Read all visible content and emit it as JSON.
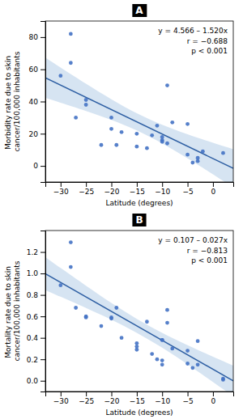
{
  "chart_data": [
    {
      "type": "scatter",
      "title": "A",
      "x_label": "Latitude (degrees)",
      "y_label": "Morbidity rate due to skin cancer/100,000 inhabitants",
      "annotations": [
        "y = 4.566 – 1.520x",
        "r = −0.688",
        "p < 0.001"
      ],
      "xlim": [
        -33,
        4
      ],
      "ylim": [
        -10,
        90
      ],
      "xticks": [
        {
          "value": -30,
          "label": "−30"
        },
        {
          "value": -25,
          "label": "−25"
        },
        {
          "value": -20,
          "label": "−20"
        },
        {
          "value": -15,
          "label": "−15"
        },
        {
          "value": -10,
          "label": "−10"
        },
        {
          "value": -5,
          "label": "−5"
        },
        0
      ],
      "yticks": [
        0,
        20,
        40,
        60,
        80
      ],
      "series": [
        {
          "type": "area",
          "color": "#c5d8ed",
          "x": [
            -33,
            -30,
            -25,
            -20,
            -15,
            -10,
            -5,
            0,
            4
          ],
          "lower": [
            42.216,
            39.247,
            34.125,
            28.567,
            22.044,
            13.988,
            4.674,
            -5.26,
            -13.414
          ],
          "upper": [
            67.236,
            61.085,
            51.007,
            41.365,
            32.688,
            25.544,
            19.658,
            14.392,
            10.386
          ]
        },
        {
          "type": "line",
          "color": "#2e5fa3",
          "x": [
            -33,
            4
          ],
          "values": [
            54.726,
            -1.514
          ]
        },
        {
          "type": "scatter",
          "color": "#4472C4",
          "x": [
            -30,
            -28,
            -28,
            -27,
            -25,
            -25,
            -22,
            -20,
            -20,
            -19,
            -18,
            -15,
            -15,
            -13,
            -12,
            -11,
            -10,
            -10,
            -10,
            -9,
            -9,
            -8,
            -5,
            -5,
            -4,
            -3,
            -3,
            -2,
            2
          ],
          "values": [
            56,
            64,
            82,
            30,
            41,
            38,
            13,
            23,
            30,
            13,
            21,
            12,
            20,
            11,
            19,
            25,
            18,
            16,
            15,
            14,
            50,
            27,
            7,
            26,
            2,
            5,
            3,
            9,
            8
          ]
        }
      ]
    },
    {
      "type": "scatter",
      "title": "B",
      "x_label": "Latitude (degrees)",
      "y_label": "Mortality rate due to skin cancer/100,000 inhabitants",
      "annotations": [
        "y = 0.107 – 0.027x",
        "r = −0.813",
        "p < 0.001"
      ],
      "xlim": [
        -33,
        4
      ],
      "ylim": [
        -0.1,
        1.4
      ],
      "xticks": [
        {
          "value": -30,
          "label": "−30"
        },
        {
          "value": -25,
          "label": "−25"
        },
        {
          "value": -20,
          "label": "−20"
        },
        {
          "value": -15,
          "label": "−15"
        },
        {
          "value": -10,
          "label": "−10"
        },
        {
          "value": -5,
          "label": "−5"
        },
        0
      ],
      "yticks": [
        {
          "value": 0,
          "label": "0.0"
        },
        0.2,
        0.4,
        0.6,
        0.8,
        {
          "value": 1,
          "label": "1.0"
        },
        1.2
      ],
      "series": [
        {
          "type": "area",
          "color": "#c5d8ed",
          "x": [
            -33,
            -30,
            -25,
            -20,
            -15,
            -10,
            -5,
            0,
            4
          ],
          "lower": [
            0.845,
            0.783,
            0.678,
            0.569,
            0.447,
            0.308,
            0.152,
            -0.011,
            -0.144
          ],
          "upper": [
            1.151,
            1.051,
            0.886,
            0.725,
            0.577,
            0.446,
            0.332,
            0.225,
            0.142
          ]
        },
        {
          "type": "line",
          "color": "#2e5fa3",
          "x": [
            -33,
            4
          ],
          "values": [
            0.998,
            -0.001
          ]
        },
        {
          "type": "scatter",
          "color": "#4472C4",
          "x": [
            -30,
            -28,
            -28,
            -27,
            -25,
            -25,
            -22,
            -20,
            -20,
            -19,
            -18,
            -15,
            -15,
            -15,
            -13,
            -12,
            -11,
            -10,
            -10,
            -10,
            -10,
            -9,
            -9,
            -8,
            -5,
            -5,
            -4,
            -3,
            -3,
            2,
            2
          ],
          "values": [
            0.89,
            1.29,
            1.06,
            0.68,
            0.6,
            0.59,
            0.51,
            0.58,
            0.59,
            0.68,
            0.4,
            0.29,
            0.35,
            0.32,
            0.55,
            0.25,
            0.2,
            0.19,
            0.15,
            0.38,
            0.38,
            0.66,
            0.54,
            0.3,
            0.28,
            0.16,
            0.12,
            0.37,
            0.15,
            0.01,
            0.02
          ]
        }
      ]
    }
  ]
}
